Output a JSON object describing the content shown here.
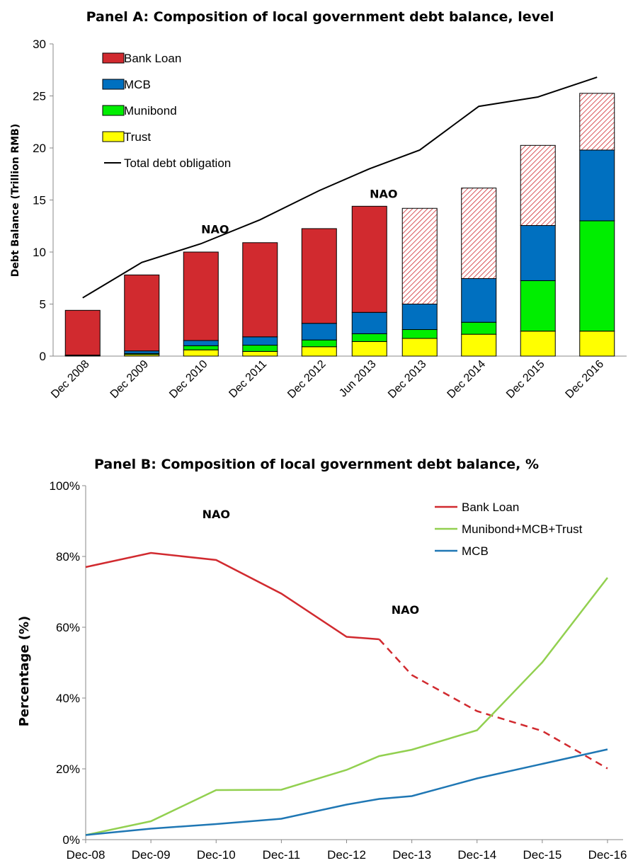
{
  "chart_data": [
    {
      "type": "bar",
      "title": "Panel A: Composition of local government debt balance, level",
      "ylabel": "Debt Balance (Trillion RMB)",
      "ylim": [
        0,
        30
      ],
      "yticks": [
        "0",
        "5",
        "10",
        "15",
        "20",
        "25",
        "30"
      ],
      "categories": [
        "Dec 2008",
        "Dec 2009",
        "Dec 2010",
        "Dec 2011",
        "Dec 2012",
        "Jun 2013",
        "Dec 2013",
        "Dec 2014",
        "Dec 2015",
        "Dec 2016"
      ],
      "series": [
        {
          "name": "Trust",
          "color": "#ffff00",
          "values": [
            0.05,
            0.15,
            0.6,
            0.45,
            0.9,
            1.4,
            1.7,
            2.1,
            2.4,
            2.4
          ]
        },
        {
          "name": "Munibond",
          "color": "#00ee00",
          "values": [
            0,
            0.1,
            0.4,
            0.6,
            0.65,
            0.75,
            0.85,
            1.15,
            4.85,
            10.6
          ]
        },
        {
          "name": "MCB",
          "color": "#0070c0",
          "values": [
            0.05,
            0.25,
            0.5,
            0.8,
            1.6,
            2.05,
            2.45,
            4.2,
            5.3,
            6.8
          ]
        },
        {
          "name": "Bank Loan",
          "color": "#d12a2f",
          "values": [
            4.3,
            7.3,
            8.5,
            9.05,
            9.1,
            10.2,
            9.2,
            8.7,
            7.7,
            5.45
          ],
          "hatched_from_index": 6
        }
      ],
      "line": {
        "name": "Total debt obligation",
        "color": "#000000",
        "values": [
          5.6,
          9.0,
          10.8,
          13.1,
          15.9,
          18.0,
          19.8,
          24.0,
          24.9,
          26.8
        ]
      },
      "annotations": [
        {
          "text": "NAO",
          "category": "Dec 2010",
          "y": 12.2
        },
        {
          "text": "NAO",
          "category": "Jun 2013",
          "y": 15.6
        }
      ],
      "legend": {
        "placement": "top-left"
      }
    },
    {
      "type": "line",
      "title": "Panel B: Composition of local government debt balance, %",
      "ylabel": "Percentage (%)",
      "ylim": [
        0,
        100
      ],
      "yticks": [
        "0%",
        "20%",
        "40%",
        "60%",
        "80%",
        "100%"
      ],
      "x": [
        0,
        1,
        2,
        3,
        4,
        4.5,
        5,
        6,
        7,
        8
      ],
      "xticks": [
        "Dec-08",
        "Dec-09",
        "Dec-10",
        "Dec-11",
        "Dec-12",
        "Dec-13",
        "Dec-14",
        "Dec-15",
        "Dec-16"
      ],
      "series": [
        {
          "name": "Bank Loan",
          "color": "#d12a2f",
          "values": [
            77,
            81,
            79,
            69.5,
            57.3,
            56.6,
            46.5,
            36.3,
            30.7,
            20.1
          ],
          "dashed_from_index": 5
        },
        {
          "name": "Munibond+MCB+Trust",
          "color": "#92d050",
          "values": [
            1.3,
            5.2,
            14,
            14.1,
            19.7,
            23.6,
            25.4,
            30.9,
            50.1,
            74
          ]
        },
        {
          "name": "MCB",
          "color": "#1f77b4",
          "values": [
            1.3,
            3.1,
            4.4,
            5.9,
            9.9,
            11.5,
            12.3,
            17.3,
            21.4,
            25.5
          ]
        }
      ],
      "annotations": [
        {
          "text": "NAO",
          "x": 2,
          "y": 92
        },
        {
          "text": "NAO",
          "x": 4.9,
          "y": 65
        }
      ],
      "legend": {
        "placement": "top-right"
      }
    }
  ]
}
